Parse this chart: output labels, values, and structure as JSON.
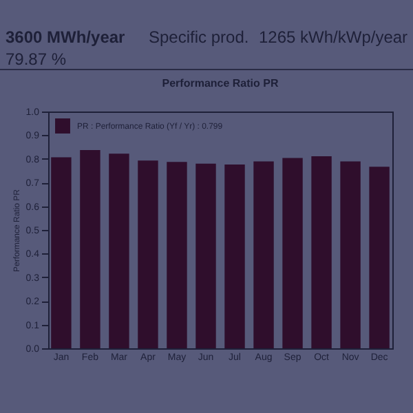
{
  "chart_data": {
    "type": "bar",
    "title": "Performance Ratio  PR",
    "ylabel": "Performance Ratio PR",
    "annotations": [
      "3600 MWh/year",
      "Specific prod.",
      "1265 kWh/kWp/year",
      "79.87 %"
    ],
    "categories": [
      "Jan",
      "Feb",
      "Mar",
      "Apr",
      "May",
      "Jun",
      "Jul",
      "Aug",
      "Sep",
      "Oct",
      "Nov",
      "Dec"
    ],
    "series": [
      {
        "name": "PR : Performance Ratio (Yf / Yr) : 0.799",
        "color": "#2f0e2c",
        "values": [
          0.807,
          0.837,
          0.822,
          0.793,
          0.787,
          0.78,
          0.776,
          0.789,
          0.804,
          0.811,
          0.789,
          0.767
        ]
      }
    ],
    "ylim": [
      0,
      1
    ],
    "yticks": [
      {
        "value": 0,
        "label": "0.0"
      },
      0.1,
      0.2,
      0.3,
      0.4,
      0.5,
      0.6,
      0.7,
      0.8,
      0.9,
      {
        "value": 1,
        "label": "1.0"
      }
    ],
    "legend": "top left",
    "grid": false
  }
}
